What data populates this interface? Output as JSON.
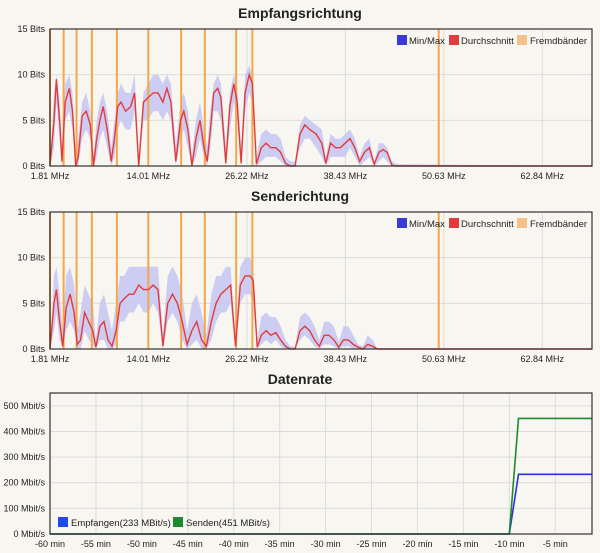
{
  "chart_data": [
    {
      "type": "area",
      "title": "Empfangsrichtung",
      "y_unit": "Bits",
      "yticks": [
        "15 Bits",
        "10 Bits",
        "5 Bits",
        "0 Bits"
      ],
      "ylim": [
        0,
        15
      ],
      "xticks": [
        "1.81 MHz",
        "14.01 MHz",
        "26.22 MHz",
        "38.43 MHz",
        "50.63 MHz",
        "62.84 MHz"
      ],
      "xlim": [
        1.81,
        69.0
      ],
      "legend": [
        "Min/Max",
        "Durchschnitt",
        "Fremdbänder"
      ],
      "legend_position": "top-right",
      "colors": {
        "minmax": "#c8c8f2",
        "avg": "#e23b3b",
        "foreign": "#f5a64a"
      },
      "foreign_bands_mhz": [
        1.81,
        3.5,
        5.1,
        7.0,
        10.1,
        14.0,
        18.07,
        21.0,
        24.89,
        26.9,
        50.0
      ],
      "series": [
        {
          "name": "Durchschnitt",
          "x": [
            1.81,
            2.3,
            2.6,
            3.0,
            3.3,
            3.7,
            4.2,
            4.6,
            5.0,
            5.3,
            5.8,
            6.3,
            6.8,
            7.2,
            7.6,
            8.0,
            8.4,
            8.9,
            9.4,
            9.8,
            10.2,
            10.6,
            11.2,
            11.8,
            12.3,
            12.8,
            13.4,
            14.0,
            14.6,
            15.2,
            15.8,
            16.3,
            16.8,
            17.4,
            18.0,
            18.4,
            18.9,
            19.4,
            19.9,
            20.4,
            20.9,
            21.3,
            21.7,
            22.1,
            22.6,
            23.0,
            23.6,
            24.1,
            24.6,
            25.0,
            25.5,
            26.0,
            26.5,
            26.9,
            27.4,
            28.0,
            28.6,
            29.2,
            29.8,
            30.4,
            31.0,
            31.6,
            32.2,
            32.8,
            33.4,
            34.0,
            34.8,
            35.5,
            36.0,
            36.6,
            37.2,
            37.8,
            38.4,
            39.0,
            39.6,
            40.2,
            40.8,
            41.4,
            42.0,
            42.6,
            43.1,
            43.6,
            44.2,
            44.6,
            45.0,
            69.0
          ],
          "y": [
            0,
            5,
            9.5,
            5,
            0.5,
            7,
            8.5,
            6,
            0,
            1,
            5.5,
            6,
            4.5,
            0,
            3,
            5,
            6.5,
            4,
            0.5,
            3,
            6.5,
            7,
            6,
            6.5,
            8,
            0,
            7,
            7.5,
            8,
            8,
            7,
            8.5,
            7,
            0.5,
            5,
            6,
            4,
            0,
            3,
            5,
            2,
            0.5,
            4,
            8,
            8.5,
            7.5,
            0.3,
            6.5,
            9,
            7,
            0.3,
            8,
            10,
            9,
            0.2,
            2,
            2.5,
            2,
            2,
            1.5,
            0.3,
            0,
            0,
            3.5,
            4.5,
            4,
            3.5,
            2.5,
            0.3,
            2.5,
            2,
            2,
            2.5,
            3,
            2,
            0.5,
            1.5,
            2,
            0.2,
            1.5,
            1.8,
            1.5,
            0.1,
            0,
            0,
            0
          ]
        },
        {
          "name": "Min/Max",
          "x": [
            1.81,
            2.3,
            2.6,
            3.0,
            3.3,
            3.7,
            4.2,
            4.6,
            5.0,
            5.3,
            5.8,
            6.3,
            6.8,
            7.2,
            7.6,
            8.0,
            8.4,
            8.9,
            9.4,
            9.8,
            10.2,
            10.6,
            11.2,
            11.8,
            12.3,
            12.8,
            13.4,
            14.0,
            14.6,
            15.2,
            15.8,
            16.3,
            16.8,
            17.4,
            18.0,
            18.4,
            18.9,
            19.4,
            19.9,
            20.4,
            20.9,
            21.3,
            21.7,
            22.1,
            22.6,
            23.0,
            23.6,
            24.1,
            24.6,
            25.0,
            25.5,
            26.0,
            26.5,
            26.9,
            27.4,
            28.0,
            28.6,
            29.2,
            29.8,
            30.4,
            31.0,
            31.6,
            32.2,
            32.8,
            33.4,
            34.0,
            34.8,
            35.5,
            36.0,
            36.6,
            37.2,
            37.8,
            38.4,
            39.0,
            39.6,
            40.2,
            40.8,
            41.4,
            42.0,
            42.6,
            43.1,
            43.6,
            44.2,
            44.6,
            45.0,
            69.0
          ],
          "min": [
            0,
            2,
            7,
            3,
            0,
            5,
            6,
            4,
            0,
            0,
            3,
            4,
            3,
            0,
            1,
            3,
            4,
            2,
            0,
            1,
            4,
            5,
            4,
            4,
            6,
            0,
            5,
            5,
            6,
            6,
            5,
            6,
            5,
            0,
            3,
            4,
            2,
            0,
            1,
            3,
            1,
            0,
            2,
            6,
            6,
            5,
            0,
            4,
            7,
            5,
            0,
            6,
            8,
            7,
            0,
            0.5,
            1,
            1,
            1,
            0.5,
            0,
            0,
            0,
            2,
            3,
            3,
            2,
            1,
            0,
            1,
            1,
            1,
            1,
            2,
            1,
            0,
            0.5,
            1,
            0,
            0.5,
            1,
            0.5,
            0,
            0,
            0,
            0
          ],
          "max": [
            0,
            8,
            10,
            7,
            2,
            9,
            10,
            8,
            1,
            3,
            7,
            8,
            6,
            1,
            5,
            7,
            8,
            6,
            2,
            5,
            8,
            9,
            8,
            8,
            10,
            1,
            8,
            9,
            10,
            10,
            9,
            10,
            9,
            2,
            7,
            8,
            6,
            1,
            5,
            7,
            4,
            2,
            6,
            9,
            10,
            9,
            2,
            8,
            10,
            9,
            2,
            10,
            11,
            10,
            1,
            3.5,
            4,
            3.5,
            3.5,
            3,
            1,
            0.5,
            0.5,
            4.5,
            5.5,
            5,
            4.5,
            4,
            1,
            3.5,
            3,
            3,
            3.5,
            4,
            3,
            1,
            2.5,
            3,
            0.5,
            2.5,
            2.5,
            2,
            0.5,
            0.3,
            0.2,
            0
          ]
        }
      ]
    },
    {
      "type": "area",
      "title": "Senderichtung",
      "y_unit": "Bits",
      "yticks": [
        "15 Bits",
        "10 Bits",
        "5 Bits",
        "0 Bits"
      ],
      "ylim": [
        0,
        15
      ],
      "xticks": [
        "1.81 MHz",
        "14.01 MHz",
        "26.22 MHz",
        "38.43 MHz",
        "50.63 MHz",
        "62.84 MHz"
      ],
      "xlim": [
        1.81,
        69.0
      ],
      "legend": [
        "Min/Max",
        "Durchschnitt",
        "Fremdbänder"
      ],
      "legend_position": "top-right",
      "colors": {
        "minmax": "#c8c8f2",
        "avg": "#e23b3b",
        "foreign": "#f5a64a"
      },
      "foreign_bands_mhz": [
        1.81,
        3.5,
        5.1,
        7.0,
        10.1,
        14.0,
        18.07,
        21.0,
        24.89,
        26.9,
        50.0
      ],
      "series": [
        {
          "name": "Durchschnitt",
          "x": [
            1.81,
            2.3,
            2.6,
            3.0,
            3.4,
            3.8,
            4.3,
            4.8,
            5.2,
            5.6,
            6.1,
            6.6,
            7.1,
            7.5,
            8.0,
            8.5,
            9.0,
            9.5,
            10.0,
            10.5,
            11.0,
            11.6,
            12.2,
            12.8,
            13.4,
            14.0,
            14.6,
            15.2,
            15.8,
            16.4,
            17.0,
            17.6,
            18.2,
            18.8,
            19.4,
            20.0,
            20.6,
            21.2,
            21.8,
            22.4,
            23.0,
            23.6,
            24.2,
            24.8,
            25.4,
            26.0,
            26.6,
            27.0,
            27.5,
            28.0,
            28.6,
            29.2,
            29.8,
            30.4,
            31.0,
            31.6,
            32.2,
            32.8,
            33.4,
            34.0,
            34.6,
            35.2,
            35.8,
            36.4,
            37.0,
            37.6,
            38.2,
            38.8,
            39.4,
            40.0,
            40.6,
            41.2,
            41.8,
            42.4,
            42.8,
            43.2,
            69.0
          ],
          "y": [
            0,
            5,
            6.5,
            3,
            0.3,
            4.5,
            6,
            4,
            0.5,
            1,
            4,
            3,
            2,
            0.2,
            2.5,
            3,
            1,
            0.3,
            2,
            5,
            5.5,
            6,
            6,
            7,
            6.5,
            6.5,
            7,
            6.5,
            0.3,
            5,
            6,
            5,
            3,
            0.5,
            2,
            3,
            1,
            0.3,
            3,
            5,
            6,
            6.5,
            7,
            0.3,
            7,
            8,
            8,
            7.5,
            0.2,
            1.5,
            2,
            1.5,
            1.8,
            1,
            0.3,
            0,
            0,
            2,
            2.5,
            2,
            1,
            0.3,
            1.5,
            1.5,
            1,
            0.2,
            1,
            1,
            0.5,
            0.2,
            0,
            0.5,
            0.3,
            0,
            0,
            0,
            0
          ]
        },
        {
          "name": "Min/Max",
          "x": [
            1.81,
            2.3,
            2.6,
            3.0,
            3.4,
            3.8,
            4.3,
            4.8,
            5.2,
            5.6,
            6.1,
            6.6,
            7.1,
            7.5,
            8.0,
            8.5,
            9.0,
            9.5,
            10.0,
            10.5,
            11.0,
            11.6,
            12.2,
            12.8,
            13.4,
            14.0,
            14.6,
            15.2,
            15.8,
            16.4,
            17.0,
            17.6,
            18.2,
            18.8,
            19.4,
            20.0,
            20.6,
            21.2,
            21.8,
            22.4,
            23.0,
            23.6,
            24.2,
            24.8,
            25.4,
            26.0,
            26.6,
            27.0,
            27.5,
            28.0,
            28.6,
            29.2,
            29.8,
            30.4,
            31.0,
            31.6,
            32.2,
            32.8,
            33.4,
            34.0,
            34.6,
            35.2,
            35.8,
            36.4,
            37.0,
            37.6,
            38.2,
            38.8,
            39.4,
            40.0,
            40.6,
            41.2,
            41.8,
            42.4,
            42.8,
            43.2,
            69.0
          ],
          "min": [
            0,
            2,
            4,
            1,
            0,
            2,
            3,
            2,
            0,
            0,
            2,
            1,
            0.5,
            0,
            1,
            1,
            0,
            0,
            0.5,
            3,
            3,
            4,
            4,
            5,
            4,
            4,
            5,
            4,
            0,
            3,
            4,
            3,
            1,
            0,
            0.5,
            1,
            0,
            0,
            1,
            3,
            4,
            4,
            5,
            0,
            5,
            6,
            6,
            5,
            0,
            0.5,
            1,
            0.5,
            1,
            0.3,
            0,
            0,
            0,
            1,
            1.5,
            1,
            0.3,
            0,
            0.5,
            0.5,
            0.3,
            0,
            0.3,
            0.3,
            0,
            0,
            0,
            0,
            0,
            0,
            0,
            0,
            0
          ],
          "max": [
            0,
            8,
            9,
            6,
            2,
            8,
            9,
            7,
            2,
            4,
            7,
            6,
            5,
            1,
            5,
            6,
            4,
            2,
            5,
            8,
            8,
            9,
            9,
            9,
            9,
            9,
            9,
            9,
            1.5,
            8,
            9,
            8,
            6,
            2,
            5,
            6,
            4,
            1.5,
            6,
            8,
            8,
            9,
            9,
            1,
            9,
            10,
            10,
            9,
            1,
            3.5,
            4,
            3.5,
            3.5,
            2.5,
            1,
            0.3,
            0.3,
            3.5,
            4,
            3.5,
            2.5,
            1,
            3,
            3,
            2.5,
            0.8,
            2.5,
            2.5,
            1.5,
            0.5,
            0.3,
            1.5,
            1,
            0,
            0,
            0,
            0
          ]
        }
      ]
    },
    {
      "type": "line",
      "title": "Datenrate",
      "yticks": [
        "500 Mbit/s",
        "400 Mbit/s",
        "300 Mbit/s",
        "200 Mbit/s",
        "100 Mbit/s",
        "0 Mbit/s"
      ],
      "ylim": [
        0,
        550
      ],
      "xticks": [
        "-60 min",
        "-55 min",
        "-50 min",
        "-45 min",
        "-40 min",
        "-35 min",
        "-30 min",
        "-25 min",
        "-20 min",
        "-15 min",
        "-10 min",
        "-5 min"
      ],
      "xlim": [
        -60,
        -1
      ],
      "legend_position": "bottom-left",
      "series": [
        {
          "name": "Empfangen(233 MBit/s)",
          "color": "#2f2fd6",
          "x": [
            -60,
            -10,
            -9,
            -1
          ],
          "y": [
            0,
            0,
            233,
            233
          ]
        },
        {
          "name": "Senden(451 MBit/s)",
          "color": "#1e8a2e",
          "x": [
            -60,
            -10,
            -9,
            -1
          ],
          "y": [
            0,
            0,
            451,
            451
          ]
        }
      ]
    }
  ]
}
